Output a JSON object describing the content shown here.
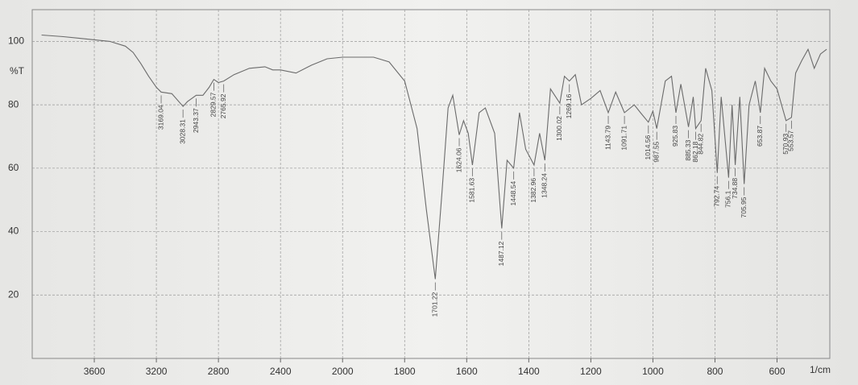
{
  "chart_data": {
    "type": "line",
    "y_label": "%T",
    "x_label": "1/cm",
    "color": "#6b6b6b",
    "grid": true,
    "xlim": [
      4000,
      430
    ],
    "x_scale_break": 2000,
    "ylim": [
      0,
      110
    ],
    "xticks": [
      3600,
      3200,
      2800,
      2400,
      2000,
      1800,
      1600,
      1400,
      1200,
      1000,
      800,
      600
    ],
    "yticks": [
      100,
      80,
      60,
      40,
      20
    ],
    "x": [
      3940,
      3800,
      3700,
      3600,
      3500,
      3400,
      3350,
      3300,
      3250,
      3200,
      3169.04,
      3100,
      3028.31,
      3000,
      2943.37,
      2900,
      2860,
      2829.57,
      2800,
      2765.92,
      2700,
      2600,
      2500,
      2450,
      2400,
      2300,
      2200,
      2100,
      2000,
      1900,
      1850,
      1800,
      1760,
      1730,
      1701.22,
      1680,
      1660,
      1645,
      1624.06,
      1610,
      1595,
      1581.63,
      1560,
      1540,
      1510,
      1487.12,
      1470,
      1448.54,
      1430,
      1410,
      1382.96,
      1365,
      1348.24,
      1330,
      1300.02,
      1285,
      1269.16,
      1250,
      1230,
      1200,
      1170,
      1143.79,
      1120,
      1091.71,
      1060,
      1040,
      1014.56,
      1000,
      987.55,
      960,
      940,
      925.83,
      910,
      885.33,
      870,
      862.18,
      844.82,
      830,
      810,
      792.74,
      780,
      756.1,
      745,
      734.88,
      720,
      705.95,
      690,
      670,
      653.87,
      640,
      620,
      600,
      570.93,
      553.57,
      540,
      520,
      500,
      480,
      460,
      440
    ],
    "values": [
      102,
      101.5,
      101,
      100.5,
      100,
      98.5,
      96.5,
      93,
      89,
      85.5,
      84,
      83.5,
      79.5,
      81,
      83,
      83,
      85.5,
      88,
      87,
      87.5,
      89.5,
      91.5,
      92,
      91,
      91,
      90,
      92.5,
      94.5,
      95,
      95,
      93.5,
      87.5,
      72.5,
      47,
      25,
      52,
      79,
      83,
      70.5,
      75,
      71,
      61,
      77.5,
      79,
      71,
      41,
      62.5,
      60,
      77.5,
      66,
      61,
      71,
      62.5,
      85,
      80.5,
      89,
      87.5,
      89.5,
      80,
      82,
      84.5,
      77.5,
      84,
      77.5,
      80,
      77.5,
      74.5,
      78,
      72.5,
      87.5,
      89,
      77.5,
      86.5,
      73,
      82.5,
      72.5,
      75,
      91.5,
      84.5,
      58.5,
      82.5,
      57,
      80,
      61,
      82.5,
      55,
      80,
      87.5,
      77.5,
      91.5,
      87.5,
      85,
      75,
      76,
      90,
      94,
      97.5,
      91.5,
      96,
      97.5
    ],
    "peaks": [
      3169.04,
      3028.31,
      2943.37,
      2829.57,
      2765.92,
      1701.22,
      1624.06,
      1581.63,
      1487.12,
      1448.54,
      1382.96,
      1348.24,
      1300.02,
      1269.16,
      1143.79,
      1091.71,
      1014.56,
      987.55,
      925.83,
      885.33,
      862.18,
      844.82,
      792.74,
      756.1,
      734.88,
      705.95,
      653.87,
      570.93,
      553.57
    ]
  }
}
